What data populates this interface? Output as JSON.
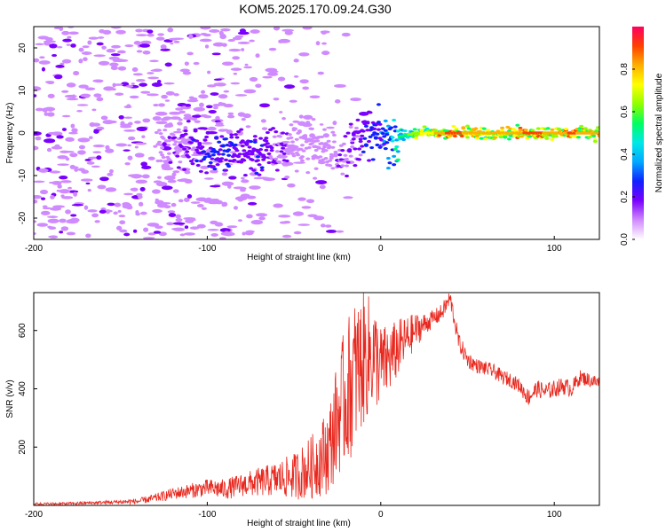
{
  "title": "KOM5.2025.170.09.24.G30",
  "chart_data": [
    {
      "type": "heatmap",
      "title": "KOM5.2025.170.09.24.G30",
      "xlabel": "Height of straight line (km)",
      "ylabel": "Frequency (Hz)",
      "xlim": [
        -200,
        126
      ],
      "ylim": [
        -25,
        25
      ],
      "xticks": [
        -200,
        -100,
        0,
        100
      ],
      "yticks": [
        -20,
        -10,
        0,
        10,
        20
      ],
      "grid": false,
      "colorbar": {
        "label": "Normalized spectral amplitude",
        "range": [
          0,
          1
        ],
        "ticks": [
          0.0,
          0.2,
          0.4,
          0.6,
          0.8
        ],
        "colors": [
          "#ffffff",
          "#d08aff",
          "#7a00ff",
          "#1020ff",
          "#00a8ff",
          "#00e8e8",
          "#00ff60",
          "#90ff00",
          "#ffff00",
          "#ffb000",
          "#ff4000",
          "#ff0060"
        ]
      },
      "ridge": {
        "description_free": true,
        "x": [
          -130,
          -120,
          -110,
          -100,
          -90,
          -80,
          -70,
          -60,
          -50,
          -40,
          -30,
          -20,
          -15,
          -10,
          -5,
          0,
          5,
          10,
          20,
          30,
          40,
          50,
          60,
          70,
          80,
          90,
          100,
          110,
          120,
          126
        ],
        "y": [
          -5,
          -3,
          -3,
          -4,
          -5,
          -4,
          -5,
          -4,
          -2,
          -3,
          -5,
          -4,
          -2,
          -1,
          0,
          -1,
          -2,
          -1,
          0,
          0,
          0,
          0,
          0,
          0,
          0,
          0,
          0,
          0,
          0,
          0
        ],
        "amplitude": [
          0.05,
          0.15,
          0.2,
          0.25,
          0.28,
          0.2,
          0.22,
          0.18,
          0.12,
          0.1,
          0.12,
          0.15,
          0.18,
          0.22,
          0.25,
          0.3,
          0.4,
          0.5,
          0.65,
          0.75,
          0.9,
          0.85,
          0.78,
          0.8,
          0.85,
          0.9,
          0.8,
          0.88,
          0.82,
          0.8
        ]
      },
      "noise_extent": [
        -200,
        0
      ]
    },
    {
      "type": "line",
      "xlabel": "Height of straight line (km)",
      "ylabel": "SNR (v/v)",
      "xlim": [
        -200,
        126
      ],
      "ylim": [
        0,
        730
      ],
      "xticks": [
        -200,
        -100,
        0,
        100
      ],
      "yticks": [
        200,
        400,
        600
      ],
      "color": "#e8281e",
      "grid": false,
      "series": [
        {
          "x": [
            -200,
            -190,
            -180,
            -170,
            -160,
            -150,
            -140,
            -130,
            -120,
            -110,
            -100,
            -90,
            -80,
            -70,
            -60,
            -50,
            -40,
            -30,
            -25,
            -20,
            -15,
            -10,
            -5,
            0,
            5,
            10,
            15,
            20,
            25,
            30,
            35,
            40,
            45,
            50,
            55,
            60,
            65,
            70,
            75,
            80,
            85,
            90,
            95,
            100,
            105,
            110,
            115,
            120,
            126
          ],
          "y": [
            5,
            5,
            6,
            8,
            10,
            12,
            14,
            25,
            40,
            50,
            60,
            55,
            70,
            80,
            90,
            100,
            130,
            190,
            300,
            380,
            450,
            500,
            520,
            480,
            500,
            540,
            570,
            600,
            620,
            640,
            660,
            710,
            560,
            500,
            480,
            470,
            460,
            440,
            430,
            410,
            370,
            400,
            390,
            400,
            410,
            400,
            440,
            430,
            420
          ],
          "spread": [
            5,
            5,
            5,
            6,
            6,
            8,
            10,
            15,
            20,
            25,
            30,
            35,
            40,
            50,
            60,
            80,
            110,
            150,
            200,
            250,
            260,
            230,
            200,
            140,
            120,
            100,
            80,
            60,
            40,
            30,
            30,
            30,
            30,
            30,
            25,
            25,
            25,
            25,
            25,
            25,
            30,
            30,
            30,
            30,
            30,
            30,
            25,
            25,
            25
          ]
        }
      ]
    }
  ]
}
